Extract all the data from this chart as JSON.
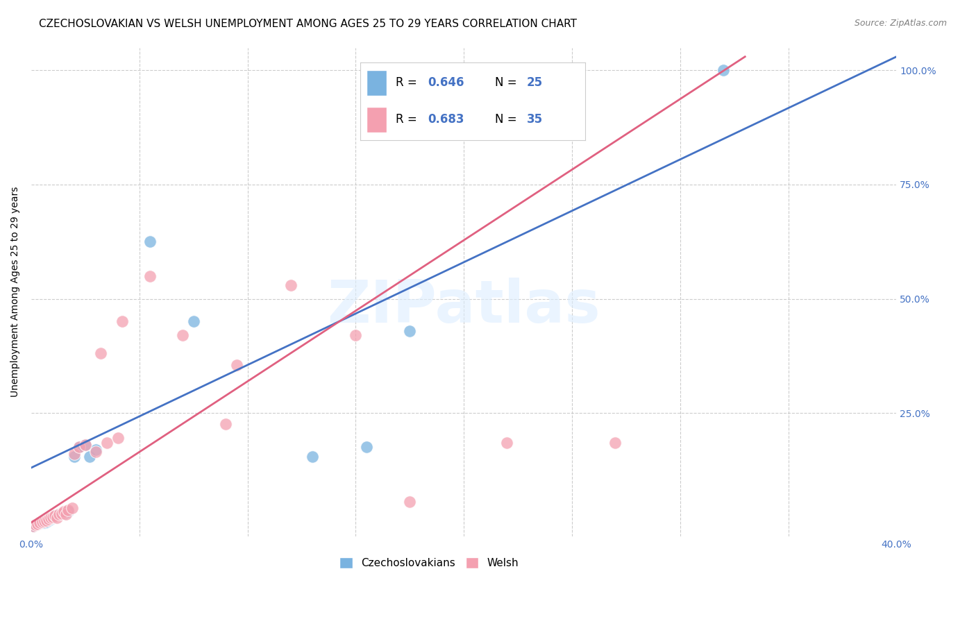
{
  "title": "CZECHOSLOVAKIAN VS WELSH UNEMPLOYMENT AMONG AGES 25 TO 29 YEARS CORRELATION CHART",
  "source": "Source: ZipAtlas.com",
  "ylabel": "Unemployment Among Ages 25 to 29 years",
  "xlim": [
    0.0,
    0.4
  ],
  "ylim": [
    -0.02,
    1.05
  ],
  "yticks": [
    0.0,
    0.25,
    0.5,
    0.75,
    1.0
  ],
  "yticklabels_right": [
    "",
    "25.0%",
    "50.0%",
    "75.0%",
    "100.0%"
  ],
  "czech_r": 0.646,
  "czech_n": 25,
  "welsh_r": 0.683,
  "welsh_n": 35,
  "czech_color": "#7ab3e0",
  "welsh_color": "#f4a0b0",
  "czech_line_color": "#4472c4",
  "welsh_line_color": "#e06080",
  "legend_label_czech": "Czechoslovakians",
  "legend_label_welsh": "Welsh",
  "watermark": "ZIPatlas",
  "czech_x": [
    0.001,
    0.002,
    0.003,
    0.004,
    0.005,
    0.006,
    0.007,
    0.008,
    0.009,
    0.01,
    0.011,
    0.013,
    0.015,
    0.017,
    0.02,
    0.022,
    0.025,
    0.027,
    0.03,
    0.055,
    0.075,
    0.13,
    0.155,
    0.175,
    0.32
  ],
  "czech_y": [
    0.003,
    0.005,
    0.007,
    0.008,
    0.01,
    0.01,
    0.012,
    0.015,
    0.018,
    0.02,
    0.025,
    0.028,
    0.03,
    0.035,
    0.155,
    0.175,
    0.18,
    0.155,
    0.17,
    0.625,
    0.45,
    0.155,
    0.175,
    0.43,
    1.0
  ],
  "welsh_x": [
    0.001,
    0.002,
    0.003,
    0.004,
    0.005,
    0.006,
    0.007,
    0.008,
    0.009,
    0.01,
    0.011,
    0.012,
    0.013,
    0.014,
    0.015,
    0.016,
    0.017,
    0.019,
    0.02,
    0.022,
    0.025,
    0.03,
    0.032,
    0.035,
    0.04,
    0.042,
    0.055,
    0.07,
    0.09,
    0.095,
    0.12,
    0.15,
    0.175,
    0.22,
    0.27
  ],
  "welsh_y": [
    0.003,
    0.005,
    0.007,
    0.01,
    0.012,
    0.013,
    0.015,
    0.018,
    0.02,
    0.022,
    0.025,
    0.02,
    0.028,
    0.03,
    0.035,
    0.028,
    0.038,
    0.042,
    0.16,
    0.175,
    0.18,
    0.165,
    0.38,
    0.185,
    0.195,
    0.45,
    0.55,
    0.42,
    0.225,
    0.355,
    0.53,
    0.42,
    0.055,
    0.185,
    0.185
  ],
  "czech_line_x": [
    0.0,
    0.4
  ],
  "czech_line_y": [
    0.13,
    1.03
  ],
  "welsh_line_x": [
    0.0,
    0.33
  ],
  "welsh_line_y": [
    0.01,
    1.03
  ],
  "background_color": "#ffffff",
  "grid_color": "#cccccc",
  "title_fontsize": 11,
  "axis_label_fontsize": 10,
  "tick_fontsize": 10,
  "legend_fontsize": 12
}
